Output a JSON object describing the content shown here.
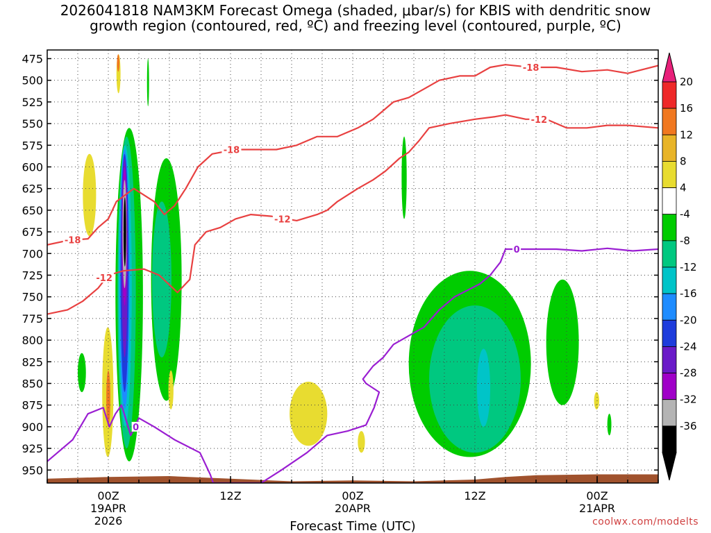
{
  "title": "2026041818 NAM3KM Forecast Omega (shaded, μbar/s) for KBIS with dendritic snow\ngrowth region (contoured, red, ºC) and freezing level (contoured, purple, ºC)",
  "credit": "coolwx.com/modelts",
  "chart_data": {
    "type": "heatmap",
    "title": "2026041818 NAM3KM Forecast Omega (shaded, μbar/s) for KBIS with dendritic snow growth region (contoured, red, ºC) and freezing level (contoured, purple, ºC)",
    "xlabel": "Forecast Time (UTC)",
    "ylabel": "",
    "x_unit": "hours since 2026041818",
    "xlim": [
      0,
      60
    ],
    "ylim_hPa": [
      965,
      465
    ],
    "y_ticks": [
      475,
      500,
      525,
      550,
      575,
      600,
      625,
      650,
      675,
      700,
      725,
      750,
      775,
      800,
      825,
      850,
      875,
      900,
      925,
      950
    ],
    "x_ticks": [
      {
        "hour": 6,
        "labels": [
          "00Z",
          "19APR",
          "2026"
        ]
      },
      {
        "hour": 18,
        "labels": [
          "12Z"
        ]
      },
      {
        "hour": 30,
        "labels": [
          "00Z",
          "20APR"
        ]
      },
      {
        "hour": 42,
        "labels": [
          "12Z"
        ]
      },
      {
        "hour": 54,
        "labels": [
          "00Z",
          "21APR"
        ]
      }
    ],
    "grid": true,
    "colorbar": {
      "ticks": [
        20,
        16,
        12,
        8,
        4,
        -4,
        -8,
        -12,
        -16,
        -20,
        -24,
        -28,
        -32,
        -36
      ],
      "levels": [
        {
          "range": [
            16,
            20
          ],
          "color": "#ee2828"
        },
        {
          "range": [
            12,
            16
          ],
          "color": "#f07820"
        },
        {
          "range": [
            8,
            12
          ],
          "color": "#e8b428"
        },
        {
          "range": [
            4,
            8
          ],
          "color": "#e8dc30"
        },
        {
          "range": [
            -4,
            4
          ],
          "color": "#ffffff"
        },
        {
          "range": [
            -8,
            -4
          ],
          "color": "#00cc00"
        },
        {
          "range": [
            -12,
            -8
          ],
          "color": "#00c880"
        },
        {
          "range": [
            -16,
            -12
          ],
          "color": "#00c4c8"
        },
        {
          "range": [
            -20,
            -16
          ],
          "color": "#1e8cff"
        },
        {
          "range": [
            -24,
            -20
          ],
          "color": "#1e3cdc"
        },
        {
          "range": [
            -28,
            -24
          ],
          "color": "#6a1ac8"
        },
        {
          "range": [
            -32,
            -28
          ],
          "color": "#a000c8"
        },
        {
          "range": [
            -36,
            -32
          ],
          "color": "#b4b4b4"
        },
        {
          "range": [
            -40,
            -36
          ],
          "color": "#000000"
        }
      ],
      "top_arrow_color": "#e8207a",
      "bottom_arrow_color": "#000000"
    },
    "omega_regions": [
      {
        "value": -6,
        "time": [
          6.7,
          9.4
        ],
        "p": [
          555,
          940
        ]
      },
      {
        "value": -10,
        "time": [
          6.9,
          8.7
        ],
        "p": [
          565,
          925
        ]
      },
      {
        "value": -14,
        "time": [
          7.0,
          8.3
        ],
        "p": [
          575,
          900
        ]
      },
      {
        "value": -18,
        "time": [
          7.1,
          8.1
        ],
        "p": [
          580,
          880
        ]
      },
      {
        "value": -22,
        "time": [
          7.2,
          8.0
        ],
        "p": [
          585,
          860
        ]
      },
      {
        "value": -26,
        "time": [
          7.3,
          7.9
        ],
        "p": [
          590,
          820
        ]
      },
      {
        "value": -30,
        "time": [
          7.35,
          7.85
        ],
        "p": [
          600,
          760
        ]
      },
      {
        "value": -34,
        "time": [
          7.4,
          7.8
        ],
        "p": [
          615,
          740
        ]
      },
      {
        "value": -38,
        "time": [
          7.5,
          7.75
        ],
        "p": [
          635,
          715
        ]
      },
      {
        "value": 6,
        "time": [
          5.4,
          6.5
        ],
        "p": [
          785,
          935
        ]
      },
      {
        "value": 14,
        "time": [
          5.8,
          6.2
        ],
        "p": [
          835,
          900
        ]
      },
      {
        "value": 6,
        "time": [
          6.8,
          7.2
        ],
        "p": [
          470,
          515
        ]
      },
      {
        "value": 12,
        "time": [
          6.85,
          7.1
        ],
        "p": [
          470,
          490
        ]
      },
      {
        "value": 6,
        "time": [
          3.5,
          4.8
        ],
        "p": [
          585,
          680
        ]
      },
      {
        "value": -6,
        "time": [
          3.0,
          3.8
        ],
        "p": [
          815,
          860
        ]
      },
      {
        "value": -6,
        "time": [
          9.8,
          10.0
        ],
        "p": [
          475,
          530
        ]
      },
      {
        "value": -6,
        "time": [
          10.2,
          13.2
        ],
        "p": [
          590,
          870
        ]
      },
      {
        "value": -10,
        "time": [
          10.3,
          12.2
        ],
        "p": [
          640,
          820
        ]
      },
      {
        "value": 6,
        "time": [
          11.9,
          12.4
        ],
        "p": [
          835,
          880
        ]
      },
      {
        "value": 6,
        "time": [
          23.8,
          27.5
        ],
        "p": [
          848,
          922
        ]
      },
      {
        "value": 6,
        "time": [
          30.5,
          31.2
        ],
        "p": [
          905,
          930
        ]
      },
      {
        "value": -6,
        "time": [
          34.8,
          35.3
        ],
        "p": [
          565,
          660
        ]
      },
      {
        "value": -6,
        "time": [
          35.5,
          47.5
        ],
        "p": [
          720,
          935
        ]
      },
      {
        "value": -10,
        "time": [
          37.5,
          46.5
        ],
        "p": [
          760,
          930
        ]
      },
      {
        "value": -14,
        "time": [
          42.2,
          43.5
        ],
        "p": [
          810,
          900
        ]
      },
      {
        "value": -6,
        "time": [
          49.0,
          52.2
        ],
        "p": [
          730,
          875
        ]
      },
      {
        "value": -6,
        "time": [
          55.0,
          55.4
        ],
        "p": [
          885,
          910
        ]
      },
      {
        "value": 6,
        "time": [
          53.7,
          54.2
        ],
        "p": [
          860,
          880
        ]
      }
    ],
    "contours": [
      {
        "label": "-18",
        "color": "#e84040",
        "units": "ºC",
        "points": [
          [
            0,
            690
          ],
          [
            2,
            685
          ],
          [
            3,
            684
          ],
          [
            4,
            683
          ],
          [
            5,
            670
          ],
          [
            6,
            660
          ],
          [
            6.8,
            640
          ],
          [
            8.5,
            625
          ],
          [
            10.5,
            640
          ],
          [
            11.5,
            655
          ],
          [
            12.5,
            645
          ],
          [
            13.6,
            625
          ],
          [
            14.8,
            600
          ],
          [
            16.2,
            585
          ],
          [
            18.5,
            580
          ],
          [
            22.5,
            580
          ],
          [
            24.5,
            575
          ],
          [
            26.5,
            565
          ],
          [
            28.5,
            565
          ],
          [
            30.5,
            555
          ],
          [
            32,
            545
          ],
          [
            33,
            535
          ],
          [
            34,
            525
          ],
          [
            35.5,
            520
          ],
          [
            37,
            510
          ],
          [
            38.5,
            500
          ],
          [
            40.5,
            495
          ],
          [
            42,
            495
          ],
          [
            43.5,
            485
          ],
          [
            45,
            482
          ],
          [
            47.5,
            485
          ],
          [
            50,
            485
          ],
          [
            52.5,
            490
          ],
          [
            55,
            488
          ],
          [
            57,
            492
          ],
          [
            60,
            483
          ]
        ],
        "label_at": [
          [
            2.5,
            684
          ],
          [
            18.1,
            580
          ],
          [
            47.5,
            485
          ]
        ]
      },
      {
        "label": "-12",
        "color": "#e84040",
        "units": "ºC",
        "points": [
          [
            0,
            770
          ],
          [
            2,
            765
          ],
          [
            3.5,
            755
          ],
          [
            5,
            740
          ],
          [
            6,
            725
          ],
          [
            7.5,
            720
          ],
          [
            9.5,
            718
          ],
          [
            11,
            725
          ],
          [
            12.8,
            745
          ],
          [
            14,
            730
          ],
          [
            14.5,
            690
          ],
          [
            15.6,
            675
          ],
          [
            17,
            670
          ],
          [
            18.5,
            660
          ],
          [
            20,
            655
          ],
          [
            22,
            657
          ],
          [
            24.5,
            662
          ],
          [
            26.5,
            655
          ],
          [
            27.5,
            650
          ],
          [
            28.5,
            640
          ],
          [
            30.5,
            625
          ],
          [
            32,
            615
          ],
          [
            33.2,
            605
          ],
          [
            34.6,
            590
          ],
          [
            35.5,
            583
          ],
          [
            36.5,
            570
          ],
          [
            37.5,
            555
          ],
          [
            39.5,
            550
          ],
          [
            42,
            545
          ],
          [
            44,
            542
          ],
          [
            45,
            540
          ],
          [
            47,
            545
          ],
          [
            49,
            545
          ],
          [
            51,
            555
          ],
          [
            53,
            555
          ],
          [
            55,
            552
          ],
          [
            57,
            552
          ],
          [
            60,
            555
          ]
        ],
        "label_at": [
          [
            5.6,
            728
          ],
          [
            23.1,
            660
          ],
          [
            48.3,
            545
          ]
        ]
      },
      {
        "label": "0",
        "color": "#9a1ed2",
        "units": "ºC",
        "points": [
          [
            0,
            940
          ],
          [
            1,
            930
          ],
          [
            2.5,
            915
          ],
          [
            4,
            885
          ],
          [
            5.5,
            878
          ],
          [
            6.1,
            900
          ],
          [
            6.7,
            885
          ],
          [
            7.3,
            875
          ],
          [
            8.2,
            910
          ],
          [
            9,
            890
          ],
          [
            10.5,
            900
          ],
          [
            12.5,
            915
          ],
          [
            15,
            930
          ],
          [
            16,
            955
          ],
          [
            16.3,
            965
          ],
          [
            21,
            965
          ],
          [
            23,
            950
          ],
          [
            25.5,
            930
          ],
          [
            27.5,
            910
          ],
          [
            29.5,
            905
          ],
          [
            31.3,
            898
          ],
          [
            32.1,
            878
          ],
          [
            32.6,
            860
          ],
          [
            31.3,
            850
          ],
          [
            31,
            845
          ],
          [
            32,
            830
          ],
          [
            33,
            820
          ],
          [
            34,
            805
          ],
          [
            35.5,
            795
          ],
          [
            37,
            785
          ],
          [
            38.5,
            765
          ],
          [
            40,
            750
          ],
          [
            42.5,
            735
          ],
          [
            43.5,
            725
          ],
          [
            44.5,
            710
          ],
          [
            45,
            695
          ],
          [
            47.5,
            695
          ],
          [
            50,
            695
          ],
          [
            52.5,
            697
          ],
          [
            55,
            694
          ],
          [
            57.5,
            697
          ],
          [
            60,
            695
          ]
        ],
        "label_at": [
          [
            8.7,
            900
          ],
          [
            46.1,
            695
          ]
        ]
      }
    ],
    "terrain": {
      "color": "#a0522d",
      "surface_p": [
        [
          0,
          960
        ],
        [
          6,
          958
        ],
        [
          12,
          957
        ],
        [
          18,
          960
        ],
        [
          24,
          963
        ],
        [
          30,
          962
        ],
        [
          36,
          963
        ],
        [
          42,
          961
        ],
        [
          45,
          958
        ],
        [
          48,
          956
        ],
        [
          54,
          955
        ],
        [
          60,
          955
        ]
      ]
    }
  }
}
